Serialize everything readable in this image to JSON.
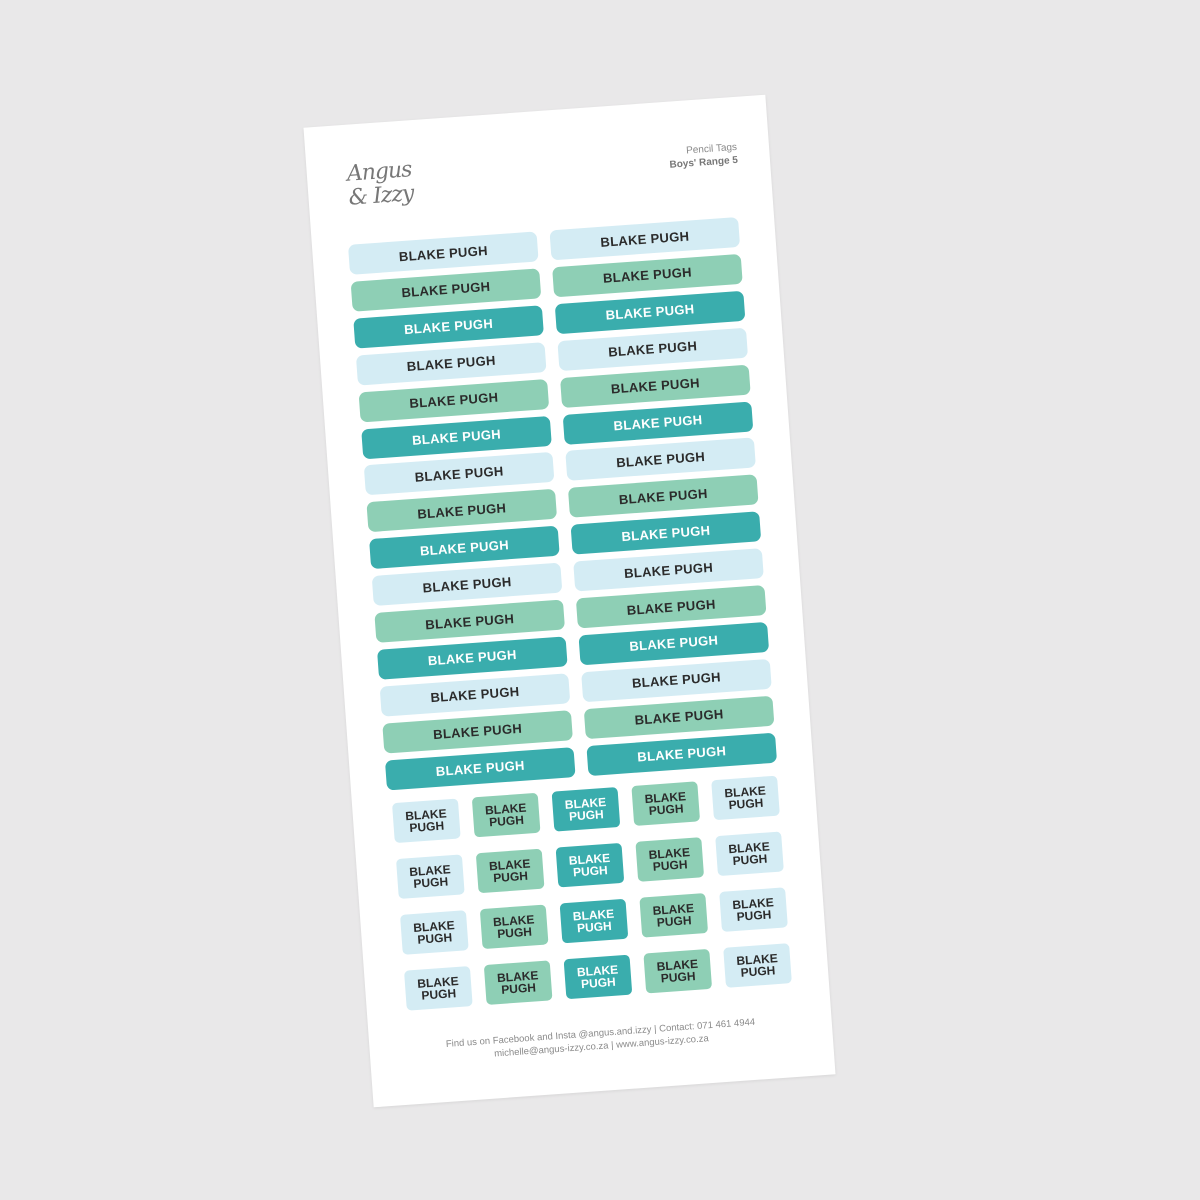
{
  "brand": {
    "logo_line1": "Angus",
    "logo_line2": "& Izzy"
  },
  "header": {
    "product": "Pencil Tags",
    "range": "Boys' Range 5"
  },
  "colors": {
    "light_blue": "#d4ecf4",
    "mint": "#8ecfb5",
    "teal": "#3aadad",
    "background": "#e9e8e9"
  },
  "long_tags": {
    "label": "BLAKE PUGH",
    "columns": 2,
    "rows": 15,
    "color_cycle": [
      "light_blue",
      "mint",
      "teal"
    ]
  },
  "small_tags": {
    "line1": "BLAKE",
    "line2": "PUGH",
    "columns": 5,
    "rows": 4,
    "column_colors": [
      "light_blue",
      "mint",
      "teal",
      "mint",
      "light_blue"
    ]
  },
  "footer": {
    "line1": "Find us on Facebook and Insta @angus.and.izzy  |  Contact: 071 461 4944",
    "line2": "michelle@angus-izzy.co.za  |  www.angus-izzy.co.za"
  }
}
